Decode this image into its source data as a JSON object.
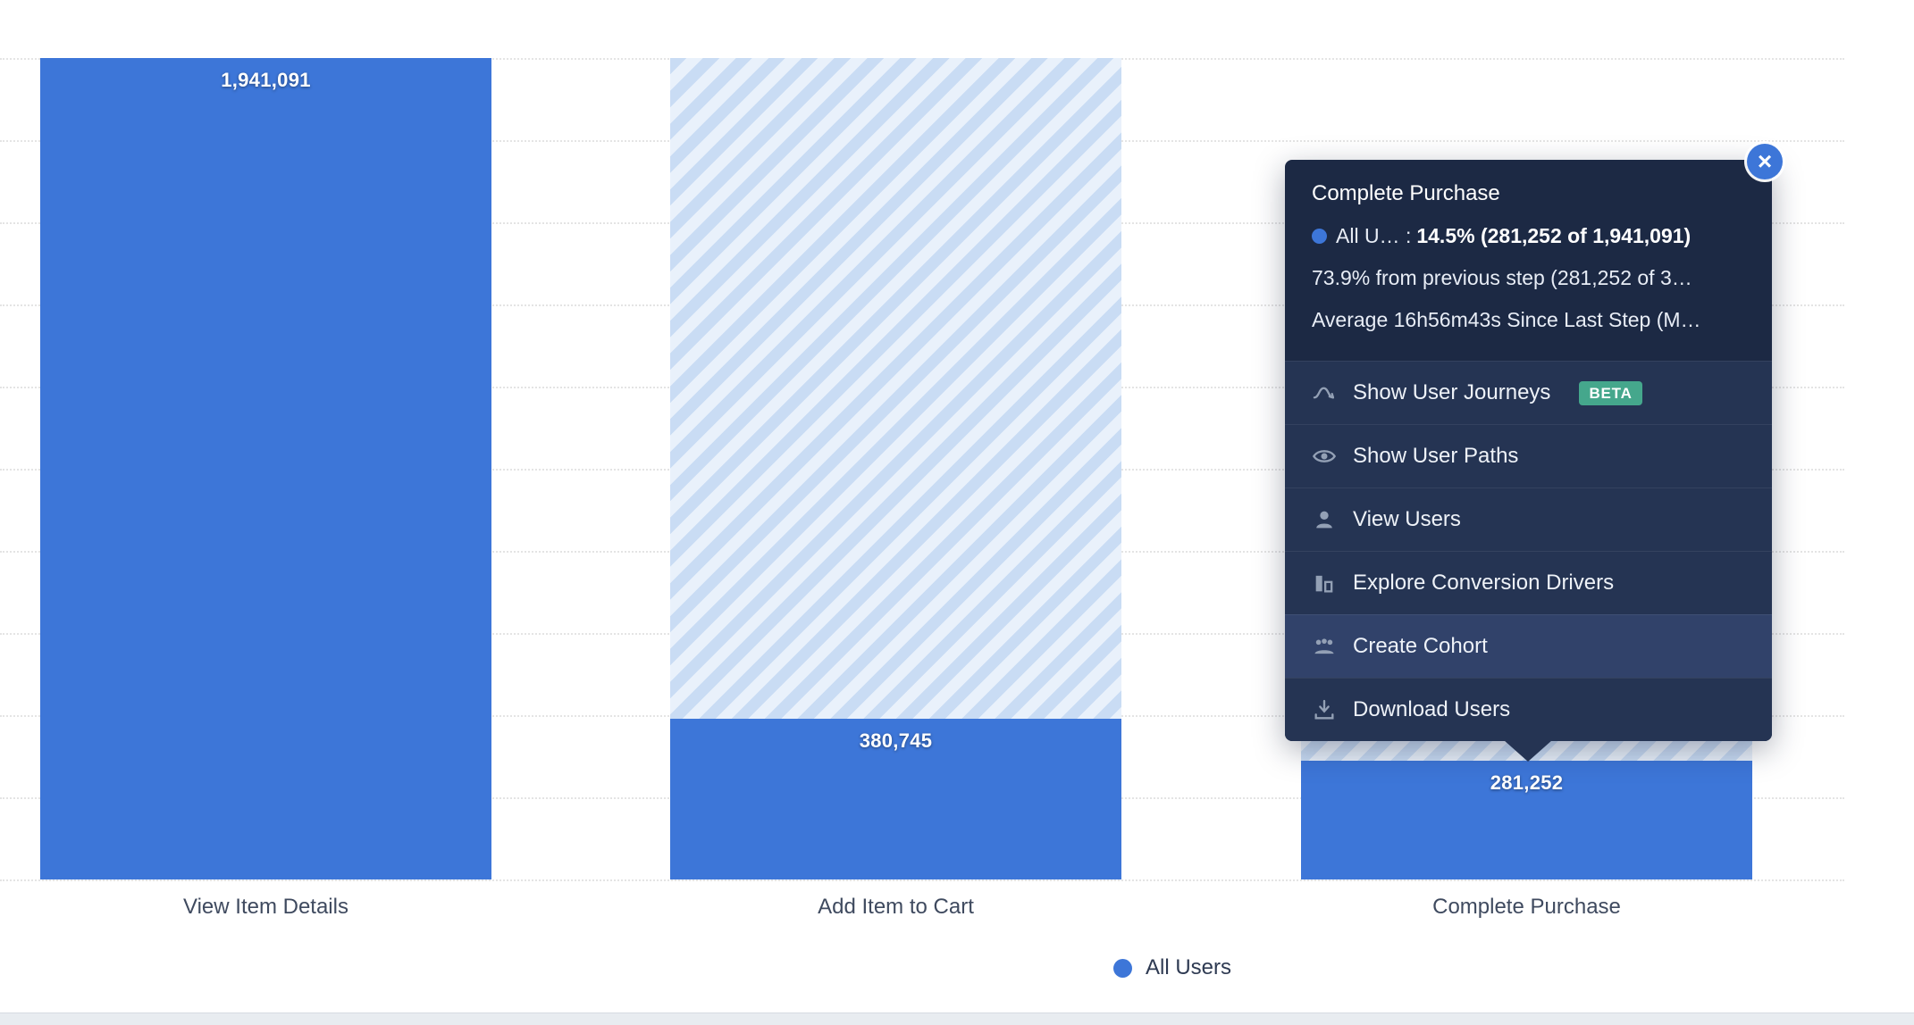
{
  "chart_data": {
    "type": "bar",
    "subtype": "funnel",
    "categories": [
      "View Item Details",
      "Add Item to Cart",
      "Complete Purchase"
    ],
    "series": [
      {
        "name": "All Users",
        "values": [
          1941091,
          380745,
          281252
        ]
      }
    ],
    "value_labels": [
      "1,941,091",
      "380,745",
      "281,252"
    ],
    "ylim": [
      0,
      1941091
    ],
    "grid": true,
    "legend_position": "bottom"
  },
  "legend": {
    "label": "All Users"
  },
  "tooltip": {
    "title": "Complete Purchase",
    "series_label": "All U… :",
    "headline_value": "14.5% (281,252 of 1,941,091)",
    "previous_step_stat": "73.9% from previous step (281,252 of 3…",
    "average_stat": "Average 16h56m43s Since Last Step (M…",
    "close_label": "×",
    "menu": [
      {
        "label": "Show User Journeys",
        "icon": "journey-icon",
        "badge": "BETA"
      },
      {
        "label": "Show User Paths",
        "icon": "eye-icon"
      },
      {
        "label": "View Users",
        "icon": "user-icon"
      },
      {
        "label": "Explore Conversion Drivers",
        "icon": "bar-chart-icon"
      },
      {
        "label": "Create Cohort",
        "icon": "cohort-icon",
        "highlighted": true
      },
      {
        "label": "Download Users",
        "icon": "download-icon"
      }
    ]
  },
  "colors": {
    "bar": "#3d76d8",
    "hatch_dark": "#c9dcf4",
    "hatch_light": "#e9f1fb",
    "tooltip_bg": "#1c2944",
    "tooltip_menu_bg": "#253453",
    "tooltip_hover_bg": "#31426a",
    "beta_badge": "#45a78c",
    "axis_label": "#3f4a5f"
  }
}
